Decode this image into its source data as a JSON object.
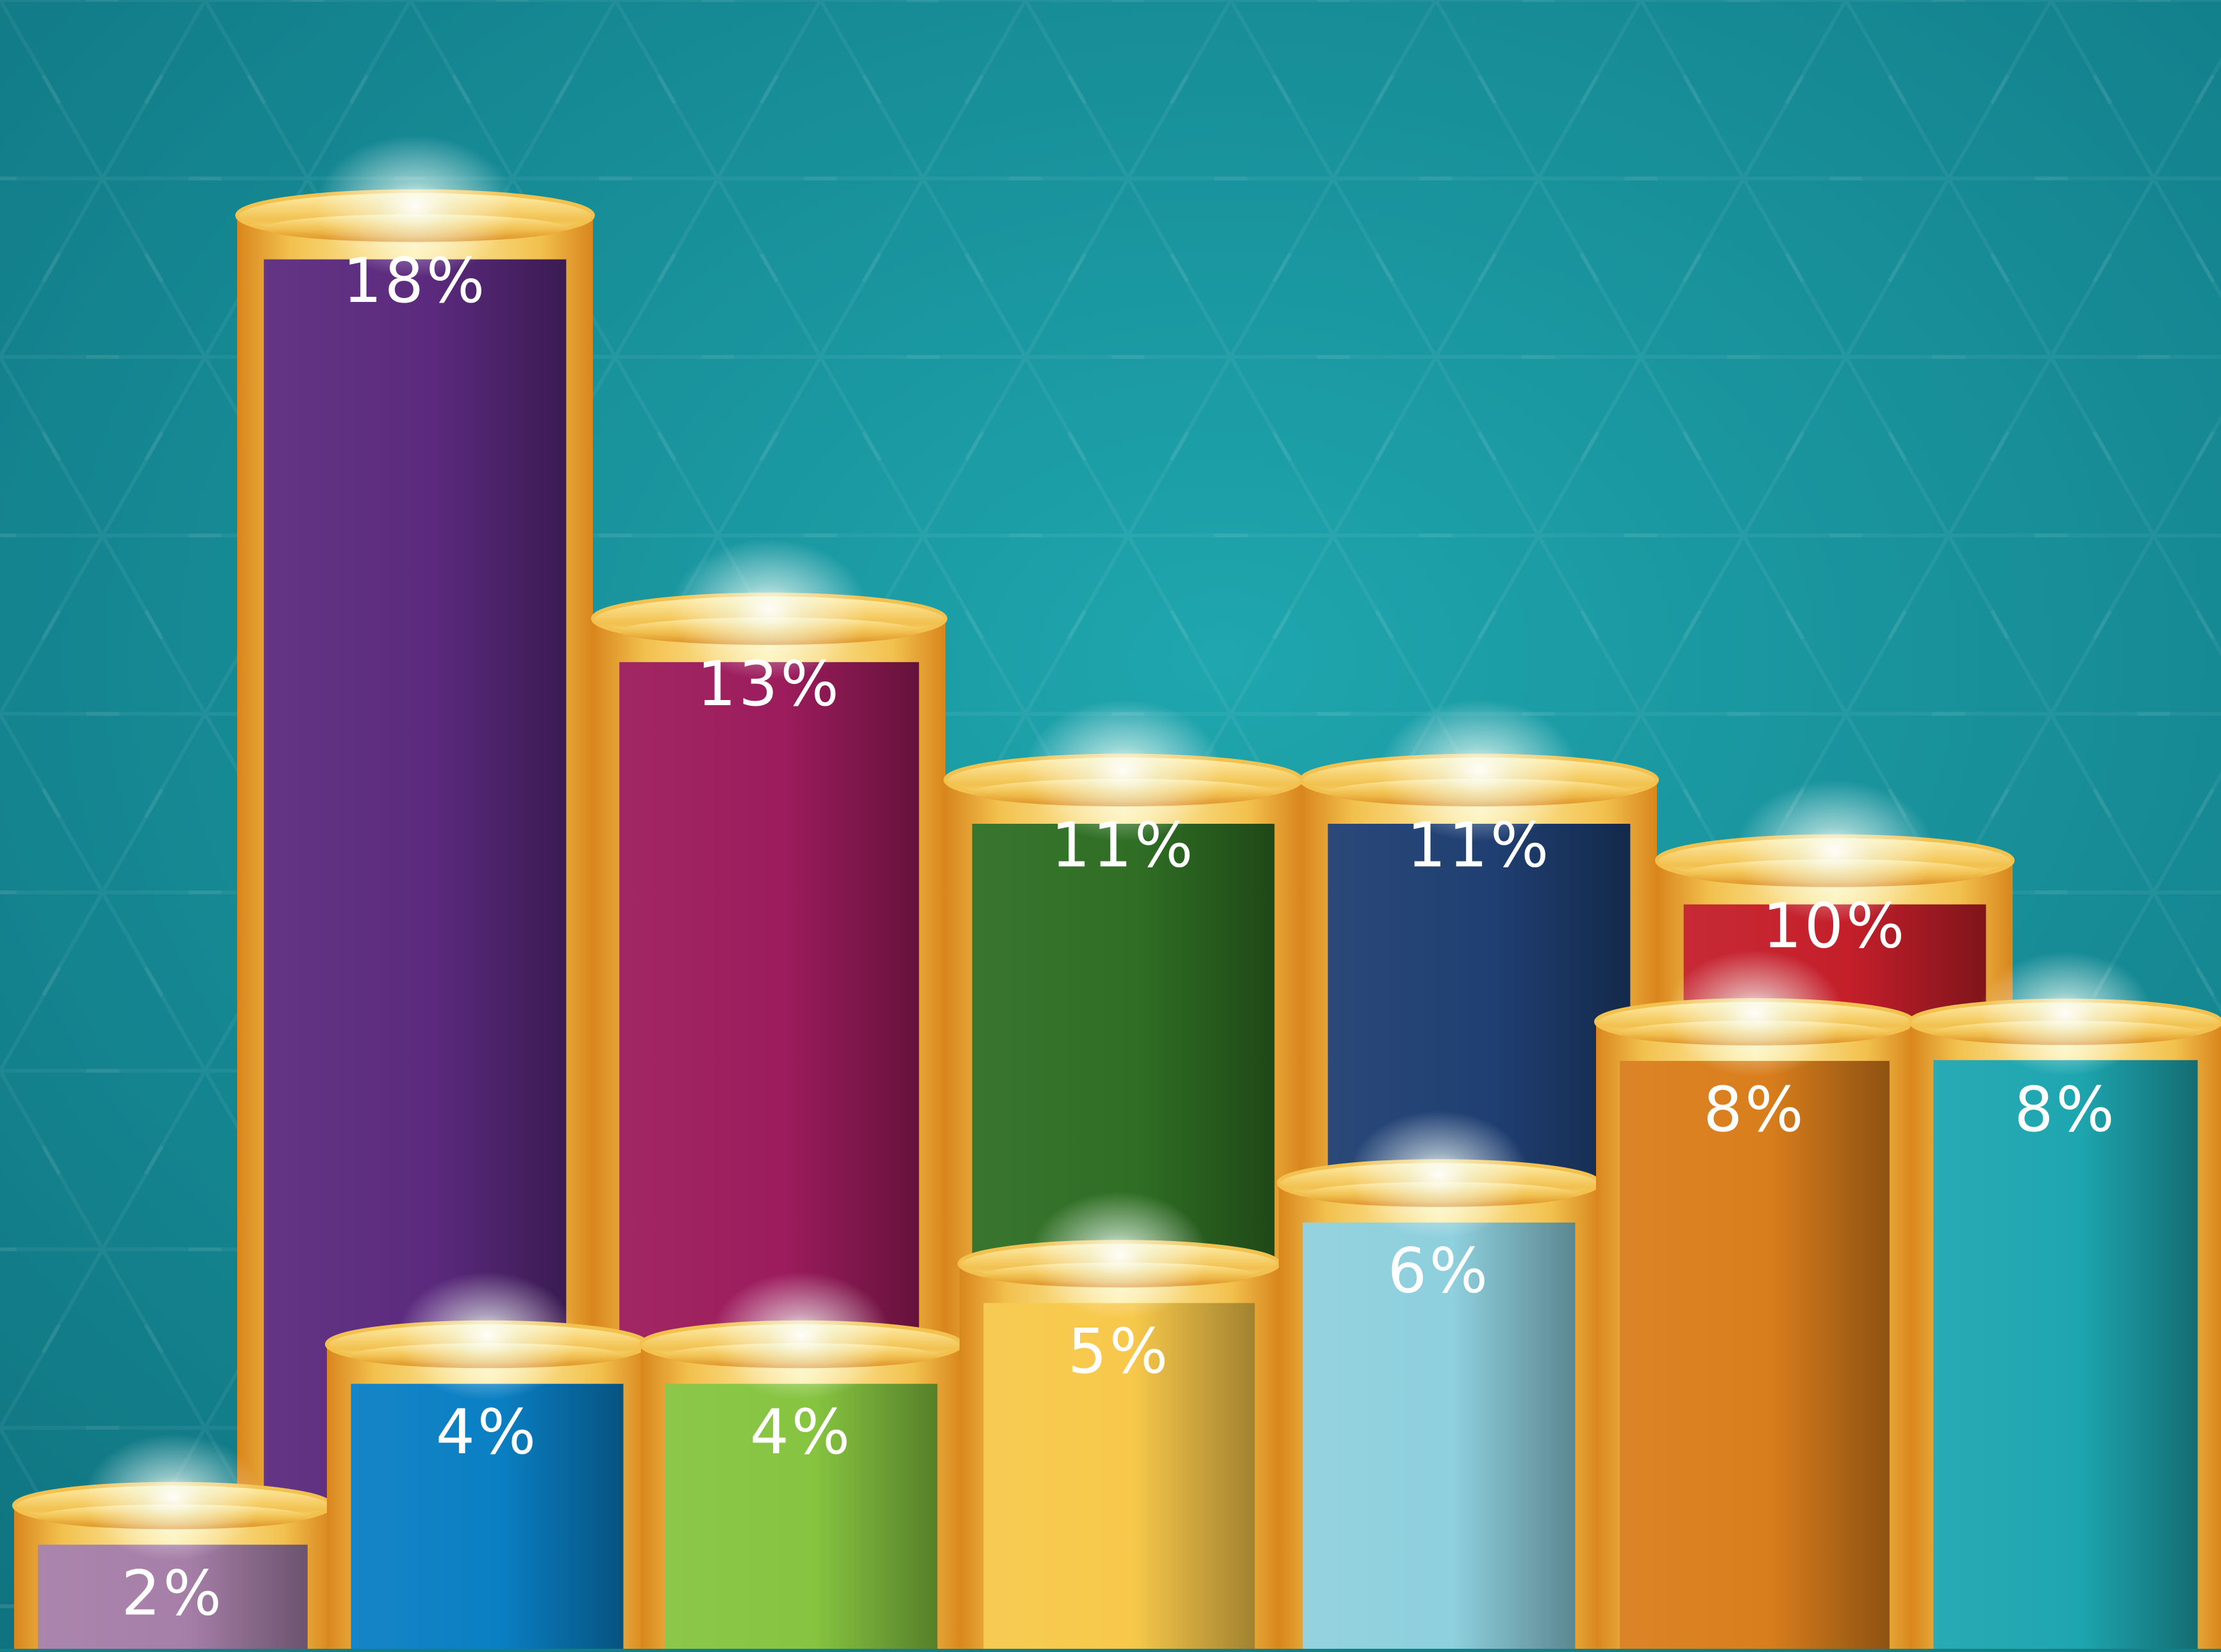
{
  "colors": {
    "background_center": "#1fa6ae",
    "background_edge": "#0f7480",
    "gold_light": "#fff1b0",
    "gold_mid": "#f2c14e",
    "gold_dark": "#d9861c",
    "label_color": "#ffffff"
  },
  "chart_data": {
    "type": "bar",
    "style": "3d-cylinders",
    "title": "",
    "xlabel": "",
    "ylabel": "",
    "ylim": [
      0,
      20
    ],
    "grid": false,
    "legend": "none",
    "values": [
      2,
      18,
      4,
      13,
      4,
      11,
      5,
      11,
      6,
      10,
      8,
      8
    ],
    "labels": [
      "2%",
      "18%",
      "4%",
      "13%",
      "4%",
      "11%",
      "5%",
      "11%",
      "6%",
      "10%",
      "8%",
      "8%"
    ],
    "row": [
      "front",
      "back",
      "front",
      "back",
      "front",
      "back",
      "front",
      "back",
      "front",
      "back",
      "front",
      "front"
    ],
    "colors": [
      "#a67fa8",
      "#5b2a7e",
      "#0a7fc3",
      "#9c1c5c",
      "#86c440",
      "#2f6e24",
      "#f7c84a",
      "#1f3f72",
      "#8ed0dd",
      "#c41f2a",
      "#d97e1c",
      "#1ea6b0"
    ]
  }
}
